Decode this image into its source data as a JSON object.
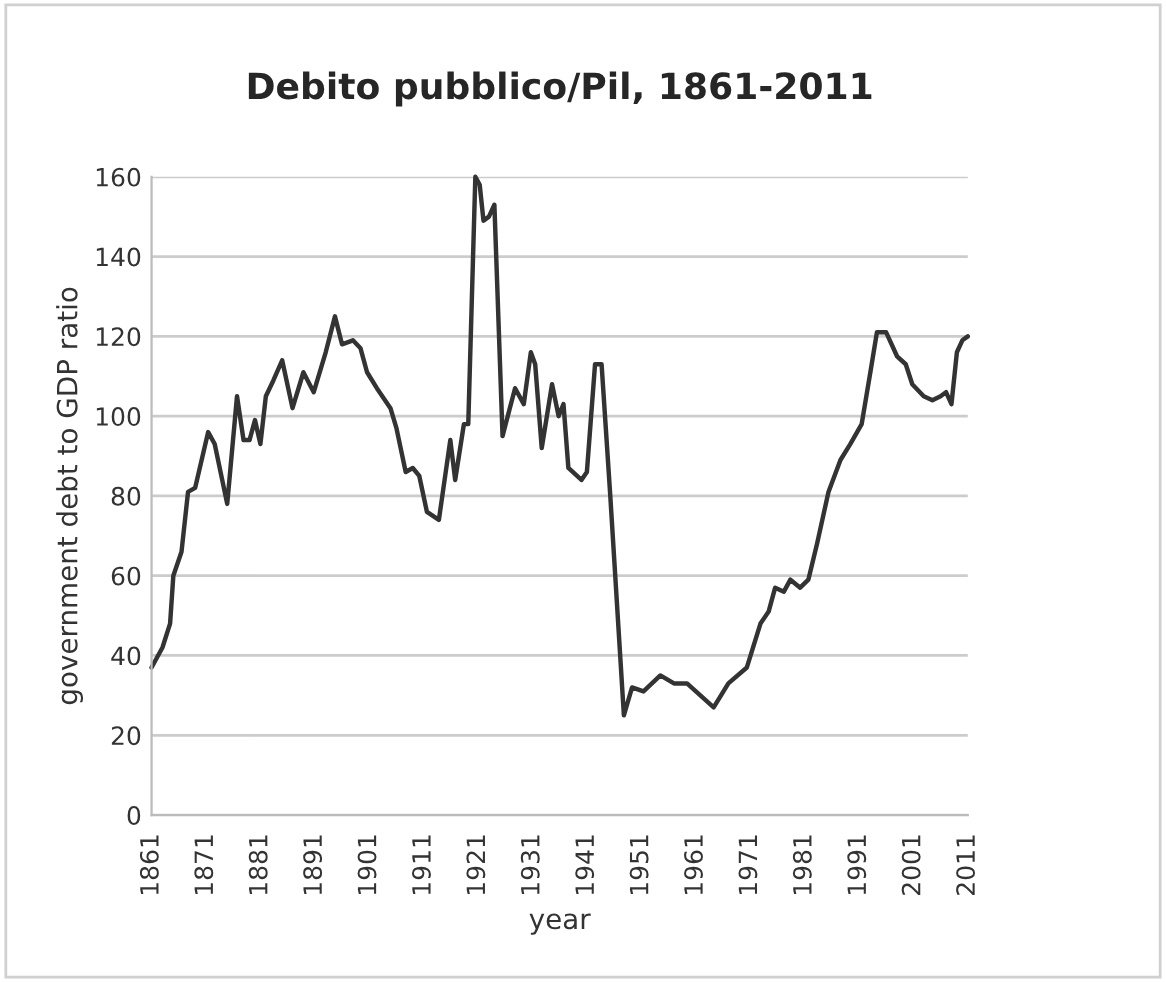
{
  "chart_data": {
    "type": "line",
    "title": "Debito pubblico/Pil, 1861-2011",
    "xlabel": "year",
    "ylabel": "government debt to GDP ratio",
    "x": [
      1861,
      1863,
      1864.4,
      1865,
      1866.5,
      1867.7,
      1869,
      1871.4,
      1872.6,
      1874.9,
      1876.7,
      1877.9,
      1879,
      1880,
      1881,
      1882,
      1883.4,
      1885,
      1886.9,
      1888.9,
      1890.8,
      1893,
      1894.7,
      1896,
      1898,
      1899.4,
      1900.6,
      1902.4,
      1904.9,
      1906,
      1907.7,
      1909,
      1910.2,
      1911.6,
      1913.8,
      1915.9,
      1916.8,
      1918.4,
      1919.2,
      1920.5,
      1921.3,
      1922,
      1923,
      1924,
      1925.5,
      1927.8,
      1929.4,
      1930.7,
      1931.5,
      1932.7,
      1934.6,
      1935.8,
      1936.7,
      1937.6,
      1940,
      1941,
      1942.5,
      1943.7,
      1945.3,
      1947.8,
      1949.3,
      1951.4,
      1954.5,
      1957,
      1959.4,
      1964.3,
      1967,
      1970.4,
      1972.9,
      1974.4,
      1975.6,
      1977.2,
      1978.4,
      1980.2,
      1981.7,
      1983.3,
      1985.4,
      1987.6,
      1989.4,
      1991.5,
      1993.1,
      1994.3,
      1996,
      1998,
      1999.6,
      2000.8,
      2002.9,
      2004.5,
      2006,
      2007,
      2008,
      2009,
      2010,
      2011
    ],
    "values": [
      37,
      42,
      48,
      60,
      66,
      81,
      82,
      96,
      93,
      78,
      105,
      94,
      94,
      99,
      93,
      105,
      109,
      114,
      102,
      111,
      106,
      116,
      125,
      118,
      119,
      117,
      111,
      107,
      102,
      97,
      86,
      87,
      85,
      76,
      74,
      94,
      84,
      98,
      98,
      160,
      158,
      149,
      150,
      153,
      95,
      107,
      103,
      116,
      113,
      92,
      108,
      100,
      103,
      87,
      84,
      86,
      113,
      113,
      80,
      25,
      32,
      31,
      35,
      33,
      33,
      27,
      33,
      37,
      48,
      51,
      57,
      56,
      59,
      57,
      59,
      68,
      81,
      89,
      93,
      98,
      111,
      121,
      121,
      115,
      113,
      108,
      105,
      104,
      105,
      106,
      103,
      116,
      119,
      120
    ],
    "color": "#333333",
    "xlim": [
      1861,
      2011
    ],
    "xticks": [
      1861,
      1871,
      1881,
      1891,
      1901,
      1911,
      1921,
      1931,
      1941,
      1951,
      1961,
      1971,
      1981,
      1991,
      2001,
      2011
    ],
    "ylim": [
      0,
      160
    ],
    "yticks": [
      0,
      20,
      40,
      60,
      80,
      100,
      120,
      140,
      160
    ],
    "grid": "y",
    "line_style": "solid",
    "marker": "none"
  }
}
